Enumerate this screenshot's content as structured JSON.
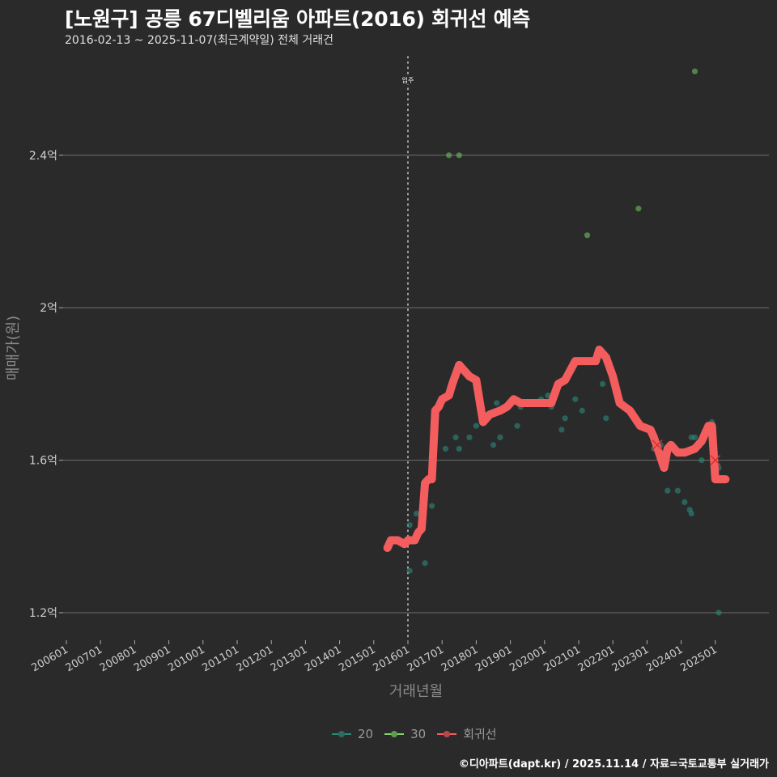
{
  "header": {
    "title": "[노원구] 공릉 67디벨리움 아파트(2016) 회귀선 예측",
    "subtitle": "2016-02-13 ~ 2025-11-07(최근계약일) 전체 거래건"
  },
  "footer": {
    "credit": "©디아파트(dapt.kr) / 2025.11.14 / 자료=국토교통부 실거래가"
  },
  "colors": {
    "background": "#2b2a2b",
    "grid": "#6e6e6e",
    "series_20": "#2a8a7a",
    "series_30": "#7fd36b",
    "regression": "#f45d5d",
    "marker_x": "#d93030"
  },
  "chart_data": {
    "type": "scatter",
    "title": "[노원구] 공릉 67디벨리움 아파트(2016) 회귀선 예측",
    "subtitle": "2016-02-13 ~ 2025-11-07(최근계약일) 전체 거래건",
    "xlabel": "거래년월",
    "ylabel": "매매가(원)",
    "x_ticks": [
      "200601",
      "200701",
      "200801",
      "200901",
      "201001",
      "201101",
      "201201",
      "201301",
      "201401",
      "201501",
      "201601",
      "201701",
      "201801",
      "201901",
      "202001",
      "202101",
      "202201",
      "202301",
      "202401",
      "202501"
    ],
    "y_ticks": [
      {
        "value": 1.2,
        "label": "1.2억"
      },
      {
        "value": 1.6,
        "label": "1.6억"
      },
      {
        "value": 2.0,
        "label": "2억"
      },
      {
        "value": 2.4,
        "label": "2.4억"
      }
    ],
    "ylim": [
      1.12,
      2.7
    ],
    "xlim": [
      2005.5,
      2026.3
    ],
    "grid": "horizontal",
    "legend_position": "bottom",
    "annotation": {
      "x": 2016.0,
      "label": "입주",
      "style": "dotted-vertical"
    },
    "legend": [
      "20",
      "30",
      "회귀선"
    ],
    "series": [
      {
        "name": "20",
        "type": "scatter",
        "points": [
          [
            2016.05,
            1.43
          ],
          [
            2016.05,
            1.31
          ],
          [
            2016.25,
            1.46
          ],
          [
            2016.5,
            1.33
          ],
          [
            2016.7,
            1.48
          ],
          [
            2017.1,
            1.63
          ],
          [
            2017.4,
            1.66
          ],
          [
            2017.5,
            1.63
          ],
          [
            2017.8,
            1.66
          ],
          [
            2018.0,
            1.69
          ],
          [
            2018.25,
            1.72
          ],
          [
            2018.5,
            1.64
          ],
          [
            2018.6,
            1.75
          ],
          [
            2018.7,
            1.66
          ],
          [
            2019.2,
            1.69
          ],
          [
            2019.3,
            1.74
          ],
          [
            2019.9,
            1.76
          ],
          [
            2020.1,
            1.77
          ],
          [
            2020.2,
            1.74
          ],
          [
            2020.3,
            1.78
          ],
          [
            2020.5,
            1.68
          ],
          [
            2020.6,
            1.71
          ],
          [
            2020.9,
            1.76
          ],
          [
            2021.1,
            1.73
          ],
          [
            2021.7,
            1.8
          ],
          [
            2021.8,
            1.71
          ],
          [
            2022.3,
            1.74
          ],
          [
            2022.8,
            1.69
          ],
          [
            2023.2,
            1.63
          ],
          [
            2023.4,
            1.64
          ],
          [
            2023.6,
            1.52
          ],
          [
            2023.9,
            1.52
          ],
          [
            2024.1,
            1.49
          ],
          [
            2024.25,
            1.47
          ],
          [
            2024.3,
            1.46
          ],
          [
            2024.3,
            1.66
          ],
          [
            2024.4,
            1.66
          ],
          [
            2024.6,
            1.6
          ],
          [
            2024.9,
            1.7
          ],
          [
            2025.1,
            1.58
          ],
          [
            2025.1,
            1.2
          ]
        ]
      },
      {
        "name": "30",
        "type": "scatter",
        "points": [
          [
            2017.2,
            2.4
          ],
          [
            2017.5,
            2.4
          ],
          [
            2021.25,
            2.19
          ],
          [
            2022.75,
            2.26
          ],
          [
            2024.4,
            2.62
          ]
        ]
      },
      {
        "name": "회귀선",
        "type": "line",
        "points": [
          [
            2015.4,
            1.37
          ],
          [
            2015.5,
            1.39
          ],
          [
            2015.7,
            1.39
          ],
          [
            2015.9,
            1.38
          ],
          [
            2016.0,
            1.39
          ],
          [
            2016.2,
            1.39
          ],
          [
            2016.3,
            1.41
          ],
          [
            2016.4,
            1.42
          ],
          [
            2016.5,
            1.54
          ],
          [
            2016.6,
            1.55
          ],
          [
            2016.7,
            1.55
          ],
          [
            2016.8,
            1.73
          ],
          [
            2016.9,
            1.74
          ],
          [
            2017.0,
            1.76
          ],
          [
            2017.2,
            1.77
          ],
          [
            2017.3,
            1.8
          ],
          [
            2017.5,
            1.85
          ],
          [
            2017.6,
            1.84
          ],
          [
            2017.8,
            1.82
          ],
          [
            2018.0,
            1.81
          ],
          [
            2018.2,
            1.7
          ],
          [
            2018.4,
            1.72
          ],
          [
            2018.7,
            1.73
          ],
          [
            2018.9,
            1.74
          ],
          [
            2019.1,
            1.76
          ],
          [
            2019.3,
            1.75
          ],
          [
            2019.6,
            1.75
          ],
          [
            2019.9,
            1.75
          ],
          [
            2020.2,
            1.75
          ],
          [
            2020.4,
            1.8
          ],
          [
            2020.6,
            1.81
          ],
          [
            2020.9,
            1.86
          ],
          [
            2021.2,
            1.86
          ],
          [
            2021.5,
            1.86
          ],
          [
            2021.6,
            1.89
          ],
          [
            2021.8,
            1.87
          ],
          [
            2022.0,
            1.82
          ],
          [
            2022.2,
            1.75
          ],
          [
            2022.5,
            1.73
          ],
          [
            2022.8,
            1.69
          ],
          [
            2023.1,
            1.68
          ],
          [
            2023.2,
            1.66
          ],
          [
            2023.5,
            1.58
          ],
          [
            2023.6,
            1.63
          ],
          [
            2023.7,
            1.64
          ],
          [
            2023.9,
            1.62
          ],
          [
            2024.1,
            1.62
          ],
          [
            2024.4,
            1.63
          ],
          [
            2024.6,
            1.65
          ],
          [
            2024.8,
            1.69
          ],
          [
            2024.9,
            1.69
          ],
          [
            2025.0,
            1.55
          ],
          [
            2025.3,
            1.55
          ]
        ]
      },
      {
        "name": "prediction-markers",
        "type": "scatter",
        "marker": "x",
        "points": [
          [
            2023.3,
            1.64
          ],
          [
            2025.0,
            1.6
          ]
        ]
      }
    ]
  }
}
